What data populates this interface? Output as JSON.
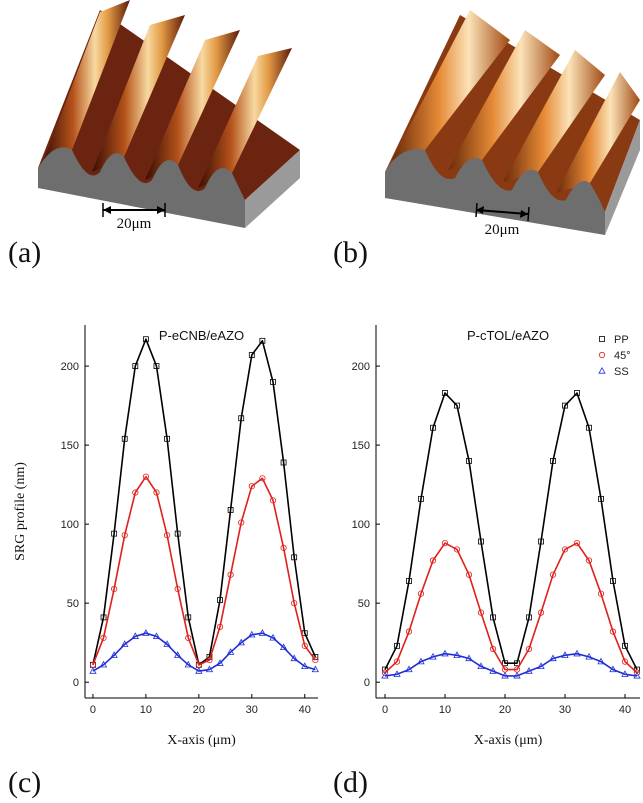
{
  "figure": {
    "panels": [
      {
        "label": "(a)",
        "scale_bar": "20μm"
      },
      {
        "label": "(b)",
        "scale_bar": "20μm"
      },
      {
        "label": "(c)"
      },
      {
        "label": "(d)"
      }
    ]
  },
  "chart_data": [
    {
      "type": "scatter",
      "title": "P-eCNB/eAZO",
      "x_label": "X-axis (μm)",
      "y_label": "SRG profile (nm)",
      "x": [
        0,
        2,
        4,
        6,
        8,
        10,
        12,
        14,
        16,
        18,
        20,
        22,
        24,
        26,
        28,
        30,
        32,
        34,
        36,
        38,
        40,
        42
      ],
      "series": [
        {
          "name": "PP",
          "color": "#000000",
          "marker": "square",
          "values": [
            11,
            41,
            94,
            154,
            200,
            217,
            200,
            154,
            94,
            41,
            11,
            16,
            52,
            109,
            167,
            207,
            216,
            190,
            139,
            79,
            31,
            16
          ]
        },
        {
          "name": "45°",
          "color": "#e0201b",
          "marker": "circle",
          "values": [
            11,
            28,
            59,
            93,
            120,
            130,
            120,
            93,
            59,
            28,
            11,
            14,
            35,
            68,
            101,
            124,
            129,
            115,
            85,
            50,
            23,
            14
          ]
        },
        {
          "name": "SS",
          "color": "#1f2fd6",
          "marker": "triangle",
          "values": [
            7,
            11,
            17,
            24,
            29,
            31,
            29,
            24,
            17,
            11,
            7,
            8,
            12,
            19,
            25,
            30,
            31,
            28,
            22,
            15,
            10,
            8
          ]
        }
      ],
      "xlim": [
        -1.5,
        42.5
      ],
      "xticks": [
        0,
        10,
        20,
        30,
        40
      ],
      "ylim": [
        -10,
        226
      ],
      "yticks": [
        0,
        50,
        100,
        150,
        200
      ]
    },
    {
      "type": "scatter",
      "title": "P-cTOL/eAZO",
      "x_label": "X-axis (μm)",
      "x": [
        0,
        2,
        4,
        6,
        8,
        10,
        12,
        14,
        16,
        18,
        20,
        22,
        24,
        26,
        28,
        30,
        32,
        34,
        36,
        38,
        40,
        42
      ],
      "series": [
        {
          "name": "PP",
          "color": "#000000",
          "marker": "square",
          "values": [
            8,
            23,
            64,
            116,
            161,
            183,
            175,
            140,
            89,
            41,
            12,
            12,
            41,
            89,
            140,
            175,
            183,
            161,
            116,
            64,
            23,
            8
          ]
        },
        {
          "name": "45°",
          "color": "#e0201b",
          "marker": "circle",
          "values": [
            6,
            13,
            32,
            56,
            77,
            88,
            84,
            68,
            44,
            21,
            8,
            8,
            21,
            44,
            68,
            84,
            88,
            77,
            56,
            32,
            13,
            6
          ]
        },
        {
          "name": "SS",
          "color": "#1f2fd6",
          "marker": "triangle",
          "values": [
            4,
            5,
            8,
            13,
            16,
            18,
            17,
            15,
            10,
            7,
            4,
            4,
            7,
            10,
            15,
            17,
            18,
            16,
            13,
            8,
            5,
            4
          ]
        }
      ],
      "xlim": [
        -1.5,
        42.5
      ],
      "xticks": [
        0,
        10,
        20,
        30,
        40
      ],
      "ylim": [
        -10,
        226
      ],
      "yticks": [
        0,
        50,
        100,
        150,
        200
      ],
      "legend": "upper right"
    }
  ]
}
